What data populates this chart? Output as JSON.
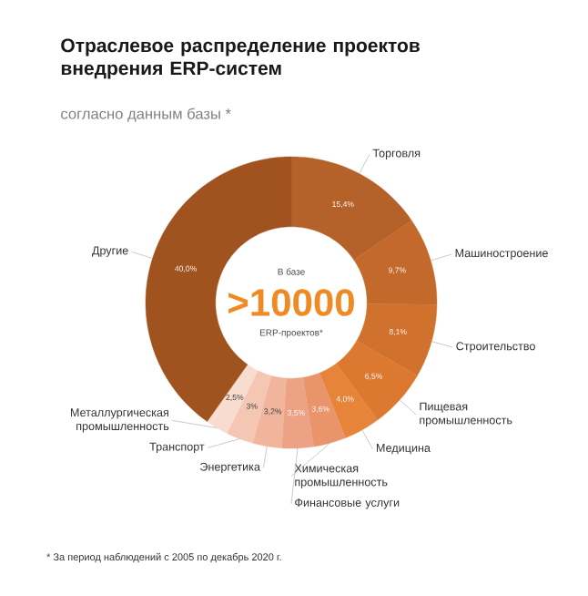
{
  "chart_data": {
    "type": "donut",
    "title": "Отраслевое распределение проектов внедрения ERP-систем",
    "subtitle": "согласно данным базы *",
    "categories": [
      "Торговля",
      "Машиностроение",
      "Строительство",
      "Пищевая промышленность",
      "Медицина",
      "Химическая промышленность",
      "Финансовые услуги",
      "Энергетика",
      "Транспорт",
      "Металлургическая промышленность",
      "Другие"
    ],
    "values": [
      15.4,
      9.7,
      8.1,
      6.5,
      4.0,
      3.6,
      3.5,
      3.2,
      3,
      2.5,
      40.0
    ],
    "value_labels": [
      "15,4%",
      "9,7%",
      "8,1%",
      "6,5%",
      "4,0%",
      "3,6%",
      "3,5%",
      "3,2%",
      "3%",
      "2,5%",
      "40,0%"
    ],
    "colors": [
      "#b5622a",
      "#c2692b",
      "#d0712d",
      "#dc7830",
      "#e6843a",
      "#e9946a",
      "#eca285",
      "#f0b59c",
      "#f4c7b4",
      "#f8dccf",
      "#a0521f"
    ],
    "annotations": [
      "В базе",
      ">10000",
      "ERP-проектов*",
      "* За период наблюдений с 2005 по декабрь 2020 г."
    ]
  }
}
